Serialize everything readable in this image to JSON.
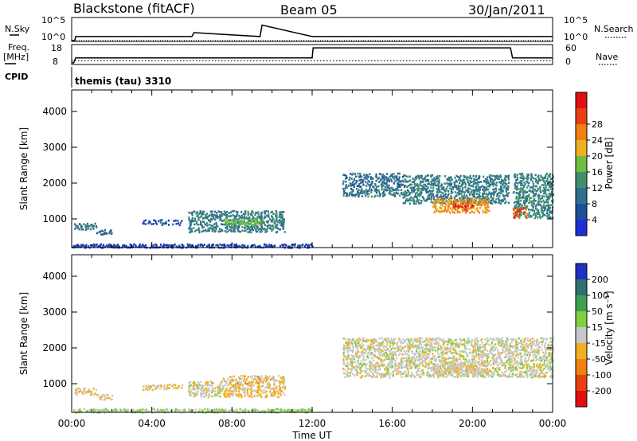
{
  "header": {
    "station": "Blackstone (fitACF)",
    "beam": "Beam 05",
    "date": "30/Jan/2011",
    "cpid_label": "CPID",
    "cpid_value": "themis (tau) 3310"
  },
  "top_panels": {
    "nsky_label": "N.Sky",
    "nsky_tick_top": "10^5",
    "nsky_tick_bottom": "10^0",
    "nsearch_label": "N.Search",
    "nsearch_tick_top": "10^5",
    "nsearch_tick_bottom": "10^0",
    "freq_label_1": "Freq.",
    "freq_label_2": "[MHz]",
    "freq_tick_top": "18",
    "freq_tick_bottom": "8",
    "nave_label": "Nave",
    "nave_tick_top": "60",
    "nave_tick_bottom": "0"
  },
  "time_axis": {
    "label": "Time UT",
    "ticks": [
      "00:00",
      "04:00",
      "08:00",
      "12:00",
      "16:00",
      "20:00",
      "00:00"
    ]
  },
  "range_axis": {
    "label": "Slant Range [km]",
    "ticks": [
      "1000",
      "2000",
      "3000",
      "4000"
    ]
  },
  "colorbars": {
    "power": {
      "label": "Power [dB]",
      "ticks": [
        "4",
        "8",
        "12",
        "16",
        "20",
        "24",
        "28"
      ],
      "colors": [
        "#1f2fd8",
        "#1f4f9a",
        "#2f6f8f",
        "#3f8f6f",
        "#6fbf3f",
        "#f0b020",
        "#f08010",
        "#e84010",
        "#e01010"
      ]
    },
    "velocity": {
      "label": "Velocity [m s⁻¹]",
      "ticks": [
        "200",
        "100",
        "50",
        "15",
        "-15",
        "-50",
        "-100",
        "-200"
      ],
      "colors": [
        "#2030c0",
        "#2f6f6f",
        "#3f9f4f",
        "#7fcf3f",
        "#c8c8c8",
        "#f0b020",
        "#f08010",
        "#e84010",
        "#e01010"
      ]
    }
  },
  "chart_data": [
    {
      "type": "line",
      "title": "N.Sky / N.Search",
      "x_range": [
        0,
        24
      ],
      "y_scale": "log",
      "y_range": [
        1,
        100000
      ],
      "series": [
        {
          "name": "N.Sky",
          "x": [
            0,
            0.15,
            0.2,
            6,
            6.1,
            9.4,
            9.5,
            12,
            18,
            24
          ],
          "y": [
            1,
            1,
            8,
            8,
            60,
            8,
            3000,
            8,
            8,
            8
          ]
        },
        {
          "name": "N.Search",
          "x": [
            0,
            24
          ],
          "y": [
            1,
            1
          ]
        }
      ]
    },
    {
      "type": "line",
      "title": "Freq. [MHz] / Nave",
      "x_range": [
        0,
        24
      ],
      "series": [
        {
          "name": "Freq. [MHz]",
          "y_range": [
            8,
            18
          ],
          "x": [
            0,
            0.1,
            0.2,
            12.0,
            12.05,
            21.9,
            22.0,
            24
          ],
          "y": [
            8,
            8,
            11,
            11,
            17,
            17,
            11,
            11
          ]
        },
        {
          "name": "Nave",
          "y_range": [
            0,
            60
          ],
          "x": [
            0,
            24
          ],
          "y": [
            10,
            10
          ]
        }
      ]
    },
    {
      "type": "heatmap",
      "title": "Power [dB]",
      "x_range": [
        0,
        24
      ],
      "y_range": [
        200,
        4600
      ],
      "value_range": [
        0,
        32
      ],
      "regions": [
        {
          "t0": 0.1,
          "t1": 1.2,
          "r0": 720,
          "r1": 900,
          "v": 10
        },
        {
          "t0": 1.2,
          "t1": 2.0,
          "r0": 580,
          "r1": 720,
          "v": 8
        },
        {
          "t0": 3.5,
          "t1": 5.5,
          "r0": 850,
          "r1": 1000,
          "v": 5
        },
        {
          "t0": 5.8,
          "t1": 10.6,
          "r0": 650,
          "r1": 1250,
          "v": 10
        },
        {
          "t0": 7.5,
          "t1": 9.5,
          "r0": 850,
          "r1": 1050,
          "v": 15
        },
        {
          "t0": 0.0,
          "t1": 12.0,
          "r0": 220,
          "r1": 320,
          "v": 4
        },
        {
          "t0": 13.5,
          "t1": 16.5,
          "r0": 1650,
          "r1": 2300,
          "v": 9
        },
        {
          "t0": 16.5,
          "t1": 21.8,
          "r0": 1450,
          "r1": 2250,
          "v": 10
        },
        {
          "t0": 18.0,
          "t1": 20.8,
          "r0": 1200,
          "r1": 1600,
          "v": 22
        },
        {
          "t0": 19.0,
          "t1": 20.0,
          "r0": 1250,
          "r1": 1450,
          "v": 27
        },
        {
          "t0": 22.0,
          "t1": 24.0,
          "r0": 1050,
          "r1": 2300,
          "v": 11
        },
        {
          "t0": 22.0,
          "t1": 22.7,
          "r0": 1050,
          "r1": 1350,
          "v": 26
        }
      ]
    },
    {
      "type": "heatmap",
      "title": "Velocity [m s⁻¹]",
      "x_range": [
        0,
        24
      ],
      "y_range": [
        200,
        4600
      ],
      "value_range": [
        -250,
        250
      ],
      "regions": [
        {
          "t0": 0.1,
          "t1": 1.2,
          "r0": 720,
          "r1": 900,
          "v": -40
        },
        {
          "t0": 1.2,
          "t1": 2.0,
          "r0": 580,
          "r1": 720,
          "v": -40
        },
        {
          "t0": 3.5,
          "t1": 5.5,
          "r0": 850,
          "r1": 1000,
          "v": -30
        },
        {
          "t0": 5.8,
          "t1": 7.5,
          "r0": 650,
          "r1": 1100,
          "v": 0
        },
        {
          "t0": 7.5,
          "t1": 10.6,
          "r0": 650,
          "r1": 1250,
          "v": -40
        },
        {
          "t0": 0.0,
          "t1": 12.0,
          "r0": 220,
          "r1": 320,
          "v": 30
        },
        {
          "t0": 13.5,
          "t1": 24.0,
          "r0": 1200,
          "r1": 2300,
          "v": 0
        },
        {
          "t0": 18.0,
          "t1": 20.8,
          "r0": 1300,
          "r1": 1600,
          "v": -20
        }
      ]
    }
  ]
}
